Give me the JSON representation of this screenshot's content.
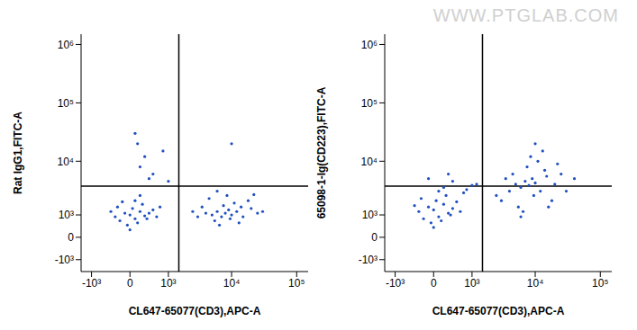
{
  "watermark": "WWW.PTGLAB.COM",
  "chart_data": [
    {
      "type": "scatter",
      "x_label": "CL647-65077(CD3),APC-A",
      "y_label": "Rat IgG1,FITC-A",
      "xlim": [
        -1500,
        150000
      ],
      "ylim": [
        -1800,
        1500000
      ],
      "xticks": [
        {
          "value": -1000,
          "label": "-10³"
        },
        0,
        {
          "value": 1000,
          "label": "10³"
        },
        {
          "value": 10000,
          "label": "10⁴"
        },
        {
          "value": 100000,
          "label": "10⁵"
        }
      ],
      "yticks": [
        {
          "value": -1000,
          "label": "-10³"
        },
        0,
        {
          "value": 1000,
          "label": "10³"
        },
        {
          "value": 10000,
          "label": "10⁴"
        },
        {
          "value": 100000,
          "label": "10⁵"
        },
        {
          "value": 1000000,
          "label": "10⁶"
        }
      ],
      "gates": {
        "x": 1500,
        "y": 3700
      },
      "color": "#1f4fc0",
      "x": [
        -300,
        -100,
        0,
        100,
        200,
        300,
        -200,
        50,
        150,
        400,
        -400,
        250,
        -50,
        350,
        500,
        100,
        -250,
        600,
        0,
        200,
        700,
        -150,
        100,
        300,
        200,
        500,
        800,
        400,
        150,
        1000,
        3000,
        4000,
        5000,
        6000,
        7000,
        8000,
        9000,
        10000,
        12000,
        15000,
        20000,
        25000,
        3500,
        5500,
        7500,
        9500,
        11000,
        14000,
        18000,
        4500,
        6500,
        8500,
        30000,
        2500,
        6000,
        13000,
        10000,
        22000
      ],
      "values": [
        900,
        1100,
        1000,
        800,
        1200,
        950,
        700,
        1400,
        600,
        1100,
        1200,
        1700,
        500,
        800,
        1300,
        2000,
        1500,
        900,
        300,
        2500,
        1500,
        1900,
        30000,
        12000,
        8000,
        6000,
        15000,
        5000,
        20000,
        4500,
        900,
        1100,
        1000,
        1200,
        900,
        1100,
        1300,
        1000,
        1200,
        900,
        1400,
        1100,
        1500,
        700,
        1600,
        800,
        1800,
        1500,
        2000,
        2200,
        500,
        2500,
        1200,
        1200,
        3000,
        600,
        20000,
        2600
      ]
    },
    {
      "type": "scatter",
      "x_label": "CL647-65077(CD3),APC-A",
      "y_label": "65098-1-Ig(CD223),FITC-A",
      "xlim": [
        -1500,
        150000
      ],
      "ylim": [
        -1800,
        1500000
      ],
      "xticks": [
        {
          "value": -1000,
          "label": "-10³"
        },
        0,
        {
          "value": 1000,
          "label": "10³"
        },
        {
          "value": 10000,
          "label": "10⁴"
        },
        {
          "value": 100000,
          "label": "10⁵"
        }
      ],
      "yticks": [
        {
          "value": -1000,
          "label": "-10³"
        },
        0,
        {
          "value": 1000,
          "label": "10³"
        },
        {
          "value": 10000,
          "label": "10⁴"
        },
        {
          "value": 100000,
          "label": "10⁵"
        },
        {
          "value": 1000000,
          "label": "10⁶"
        }
      ],
      "gates": {
        "x": 1500,
        "y": 3700
      },
      "color": "#1f4fc0",
      "x": [
        -300,
        -100,
        0,
        100,
        200,
        300,
        -200,
        50,
        150,
        400,
        -400,
        250,
        -50,
        350,
        500,
        100,
        -250,
        600,
        0,
        200,
        700,
        400,
        800,
        1000,
        300,
        -100,
        1200,
        4000,
        5000,
        6000,
        7000,
        8000,
        9000,
        10000,
        12000,
        15000,
        20000,
        25000,
        3000,
        5500,
        7500,
        9500,
        11000,
        14000,
        18000,
        4500,
        6500,
        8500,
        30000,
        2500,
        6000,
        13000,
        10000,
        22000,
        3500,
        16000,
        40000
      ],
      "values": [
        1200,
        1500,
        1300,
        900,
        1700,
        1100,
        800,
        2000,
        700,
        1400,
        1600,
        2500,
        600,
        1000,
        1900,
        3000,
        2200,
        1200,
        400,
        3500,
        2800,
        4500,
        3200,
        3800,
        6000,
        5000,
        4000,
        3000,
        4000,
        3500,
        4500,
        3800,
        5000,
        4200,
        3000,
        5500,
        4000,
        6000,
        2000,
        1500,
        8000,
        2500,
        10000,
        7000,
        2000,
        6000,
        1200,
        12000,
        3000,
        2500,
        900,
        15000,
        20000,
        9000,
        5000,
        1500,
        5000
      ]
    }
  ]
}
